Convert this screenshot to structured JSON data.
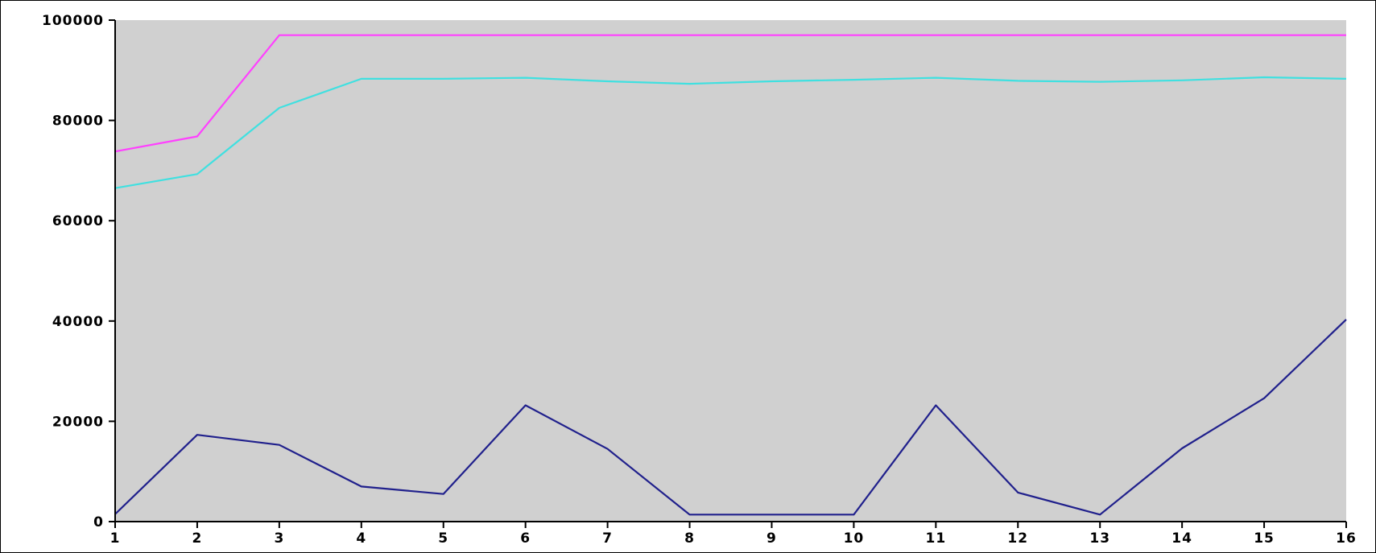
{
  "chart_data": {
    "type": "line",
    "title": "",
    "xlabel": "",
    "ylabel": "",
    "x": [
      1,
      2,
      3,
      4,
      5,
      6,
      7,
      8,
      9,
      10,
      11,
      12,
      13,
      14,
      15,
      16
    ],
    "x_tick_labels": [
      "1",
      "2",
      "3",
      "4",
      "5",
      "6",
      "7",
      "8",
      "9",
      "10",
      "11",
      "12",
      "13",
      "14",
      "15",
      "16"
    ],
    "xlim": [
      1,
      16
    ],
    "ylim": [
      0,
      100000
    ],
    "y_tick_labels": [
      "0",
      "20000",
      "40000",
      "60000",
      "80000",
      "100000"
    ],
    "y_ticks": [
      0,
      20000,
      40000,
      60000,
      80000,
      100000
    ],
    "grid": false,
    "plot_background": "#d0d0d0",
    "series": [
      {
        "color": "#ff40ff",
        "values": [
          73800,
          76800,
          97000,
          97000,
          97000,
          97000,
          97000,
          97000,
          97000,
          97000,
          97000,
          97000,
          97000,
          97000,
          97000,
          97000
        ]
      },
      {
        "color": "#40e0e0",
        "values": [
          66500,
          69300,
          82500,
          88300,
          88300,
          88500,
          87800,
          87300,
          87800,
          88100,
          88500,
          87900,
          87700,
          88000,
          88600,
          88300
        ]
      },
      {
        "color": "#20208c",
        "values": [
          1500,
          17300,
          15300,
          7000,
          5500,
          23200,
          14500,
          1400,
          1400,
          1400,
          23200,
          5800,
          1400,
          14600,
          24600,
          40300
        ]
      }
    ]
  }
}
